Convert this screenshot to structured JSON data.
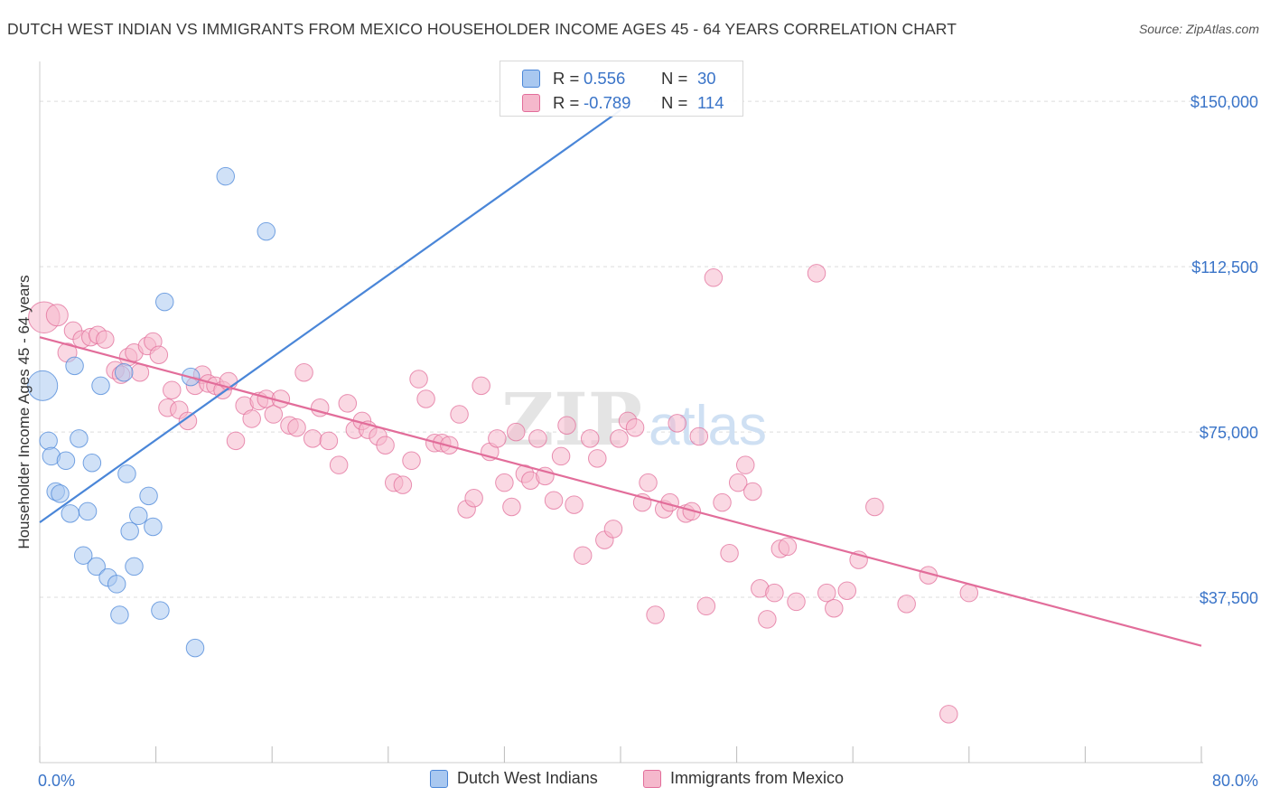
{
  "title": "DUTCH WEST INDIAN VS IMMIGRANTS FROM MEXICO HOUSEHOLDER INCOME AGES 45 - 64 YEARS CORRELATION CHART",
  "source": "Source: ZipAtlas.com",
  "watermark": {
    "zip": "ZIP",
    "atlas": "atlas"
  },
  "colors": {
    "blue": "#4a86d8",
    "blue_fill": "#a9c8f0",
    "pink": "#e26d9a",
    "pink_fill": "#f5b8cc",
    "axis_label": "#3a74c8",
    "grid": "#dddddd"
  },
  "stats": [
    {
      "r_label": "R =",
      "r_value": "0.556",
      "n_label": "N =",
      "n_value": "30"
    },
    {
      "r_label": "R =",
      "r_value": "-0.789",
      "n_label": "N =",
      "n_value": "114"
    }
  ],
  "legend": [
    {
      "label": "Dutch West Indians"
    },
    {
      "label": "Immigrants from Mexico"
    }
  ],
  "chart_data": {
    "type": "scatter",
    "ylabel": "Householder Income Ages 45 - 64 years",
    "xlabel": "",
    "x_tick_labels": [
      "0.0%",
      "80.0%"
    ],
    "y_tick_labels": [
      "$37,500",
      "$75,000",
      "$112,500",
      "$150,000"
    ],
    "y_ticks": [
      37500,
      75000,
      112500,
      150000
    ],
    "xlim": [
      0,
      80
    ],
    "ylim": [
      0,
      157000
    ],
    "grid": true,
    "legend_position": "bottom",
    "series": [
      {
        "name": "Dutch West Indians",
        "color": "#4a86d8",
        "trend": {
          "x0": 0,
          "y0": 54500,
          "x1": 40,
          "y1": 148000
        },
        "points": [
          [
            0.2,
            85500,
            2.2
          ],
          [
            0.6,
            73000,
            1.3
          ],
          [
            0.8,
            69500,
            1.3
          ],
          [
            1.1,
            61500,
            1.3
          ],
          [
            1.4,
            61000,
            1.3
          ],
          [
            1.8,
            68500,
            1.3
          ],
          [
            2.1,
            56500,
            1.3
          ],
          [
            2.4,
            90000,
            1.3
          ],
          [
            2.7,
            73500,
            1.3
          ],
          [
            3.0,
            47000,
            1.3
          ],
          [
            3.3,
            57000,
            1.3
          ],
          [
            3.6,
            68000,
            1.3
          ],
          [
            3.9,
            44500,
            1.3
          ],
          [
            4.2,
            85500,
            1.3
          ],
          [
            4.7,
            42000,
            1.3
          ],
          [
            5.3,
            40500,
            1.3
          ],
          [
            5.5,
            33500,
            1.3
          ],
          [
            5.8,
            88500,
            1.3
          ],
          [
            6.0,
            65500,
            1.3
          ],
          [
            6.2,
            52500,
            1.3
          ],
          [
            6.5,
            44500,
            1.3
          ],
          [
            6.8,
            56000,
            1.3
          ],
          [
            7.5,
            60500,
            1.3
          ],
          [
            7.8,
            53500,
            1.3
          ],
          [
            8.3,
            34500,
            1.3
          ],
          [
            8.6,
            104500,
            1.3
          ],
          [
            10.4,
            87500,
            1.3
          ],
          [
            10.7,
            26000,
            1.3
          ],
          [
            12.8,
            133000,
            1.3
          ],
          [
            15.6,
            120500,
            1.3
          ]
        ]
      },
      {
        "name": "Immigrants from Mexico",
        "color": "#e26d9a",
        "trend": {
          "x0": 0,
          "y0": 96500,
          "x1": 80,
          "y1": 26500
        },
        "points": [
          [
            0.3,
            101000,
            2.3
          ],
          [
            1.2,
            101500,
            1.6
          ],
          [
            1.9,
            93000,
            1.4
          ],
          [
            2.3,
            98000,
            1.3
          ],
          [
            2.9,
            96000,
            1.3
          ],
          [
            3.5,
            96500,
            1.3
          ],
          [
            4.0,
            97000,
            1.3
          ],
          [
            4.5,
            96000,
            1.3
          ],
          [
            5.2,
            89000,
            1.3
          ],
          [
            5.6,
            88000,
            1.3
          ],
          [
            6.1,
            92000,
            1.3
          ],
          [
            6.5,
            93000,
            1.3
          ],
          [
            6.9,
            88500,
            1.3
          ],
          [
            7.4,
            94500,
            1.3
          ],
          [
            7.8,
            95500,
            1.3
          ],
          [
            8.2,
            92500,
            1.3
          ],
          [
            8.8,
            80500,
            1.3
          ],
          [
            9.1,
            84500,
            1.3
          ],
          [
            9.6,
            80000,
            1.3
          ],
          [
            10.2,
            77500,
            1.3
          ],
          [
            10.7,
            85500,
            1.3
          ],
          [
            11.2,
            88000,
            1.3
          ],
          [
            11.6,
            86000,
            1.3
          ],
          [
            12.1,
            85500,
            1.3
          ],
          [
            12.6,
            84500,
            1.3
          ],
          [
            13.0,
            86500,
            1.3
          ],
          [
            13.5,
            73000,
            1.3
          ],
          [
            14.1,
            81000,
            1.3
          ],
          [
            14.6,
            78000,
            1.3
          ],
          [
            15.1,
            82000,
            1.3
          ],
          [
            15.6,
            82500,
            1.3
          ],
          [
            16.1,
            79000,
            1.3
          ],
          [
            16.6,
            82500,
            1.3
          ],
          [
            17.2,
            76500,
            1.3
          ],
          [
            17.7,
            76000,
            1.3
          ],
          [
            18.2,
            88500,
            1.3
          ],
          [
            18.8,
            73500,
            1.3
          ],
          [
            19.3,
            80500,
            1.3
          ],
          [
            19.9,
            73000,
            1.3
          ],
          [
            20.6,
            67500,
            1.3
          ],
          [
            21.2,
            81500,
            1.3
          ],
          [
            21.7,
            75500,
            1.3
          ],
          [
            22.2,
            77500,
            1.3
          ],
          [
            22.6,
            75500,
            1.3
          ],
          [
            23.3,
            74000,
            1.3
          ],
          [
            23.8,
            72000,
            1.3
          ],
          [
            24.4,
            63500,
            1.3
          ],
          [
            25.0,
            63000,
            1.3
          ],
          [
            25.6,
            68500,
            1.3
          ],
          [
            26.1,
            87000,
            1.3
          ],
          [
            26.6,
            82500,
            1.3
          ],
          [
            27.2,
            72500,
            1.3
          ],
          [
            27.7,
            72500,
            1.3
          ],
          [
            28.2,
            72000,
            1.3
          ],
          [
            28.9,
            79000,
            1.3
          ],
          [
            29.4,
            57500,
            1.3
          ],
          [
            29.9,
            60000,
            1.3
          ],
          [
            30.4,
            85500,
            1.3
          ],
          [
            31.0,
            70500,
            1.3
          ],
          [
            31.5,
            73500,
            1.3
          ],
          [
            32.0,
            63500,
            1.3
          ],
          [
            32.5,
            58000,
            1.3
          ],
          [
            32.8,
            75000,
            1.3
          ],
          [
            33.4,
            65500,
            1.3
          ],
          [
            33.8,
            64000,
            1.3
          ],
          [
            34.3,
            73500,
            1.3
          ],
          [
            34.8,
            65000,
            1.3
          ],
          [
            35.4,
            59500,
            1.3
          ],
          [
            35.9,
            69500,
            1.3
          ],
          [
            36.3,
            76500,
            1.3
          ],
          [
            36.8,
            58500,
            1.3
          ],
          [
            37.4,
            47000,
            1.3
          ],
          [
            37.9,
            73500,
            1.3
          ],
          [
            38.4,
            69000,
            1.3
          ],
          [
            38.9,
            50500,
            1.3
          ],
          [
            39.5,
            53000,
            1.3
          ],
          [
            39.9,
            73500,
            1.3
          ],
          [
            40.5,
            77500,
            1.3
          ],
          [
            41.0,
            76000,
            1.3
          ],
          [
            41.5,
            59000,
            1.3
          ],
          [
            41.9,
            63500,
            1.3
          ],
          [
            42.4,
            33500,
            1.3
          ],
          [
            43.0,
            57500,
            1.3
          ],
          [
            43.4,
            59000,
            1.3
          ],
          [
            43.9,
            77000,
            1.3
          ],
          [
            44.5,
            56500,
            1.3
          ],
          [
            44.9,
            57000,
            1.3
          ],
          [
            45.4,
            74000,
            1.3
          ],
          [
            45.9,
            35500,
            1.3
          ],
          [
            46.4,
            110000,
            1.3
          ],
          [
            47.0,
            59000,
            1.3
          ],
          [
            47.5,
            47500,
            1.3
          ],
          [
            48.1,
            63500,
            1.3
          ],
          [
            48.6,
            67500,
            1.3
          ],
          [
            49.1,
            61500,
            1.3
          ],
          [
            49.6,
            39500,
            1.3
          ],
          [
            50.1,
            32500,
            1.3
          ],
          [
            50.6,
            38500,
            1.3
          ],
          [
            51.0,
            48500,
            1.3
          ],
          [
            51.5,
            49000,
            1.3
          ],
          [
            52.1,
            36500,
            1.3
          ],
          [
            53.5,
            111000,
            1.3
          ],
          [
            54.2,
            38500,
            1.3
          ],
          [
            54.7,
            35000,
            1.3
          ],
          [
            55.6,
            39000,
            1.3
          ],
          [
            56.4,
            46000,
            1.3
          ],
          [
            57.5,
            58000,
            1.3
          ],
          [
            59.7,
            36000,
            1.3
          ],
          [
            61.2,
            42500,
            1.3
          ],
          [
            64.0,
            38500,
            1.3
          ],
          [
            62.6,
            11000,
            1.3
          ]
        ]
      }
    ]
  }
}
